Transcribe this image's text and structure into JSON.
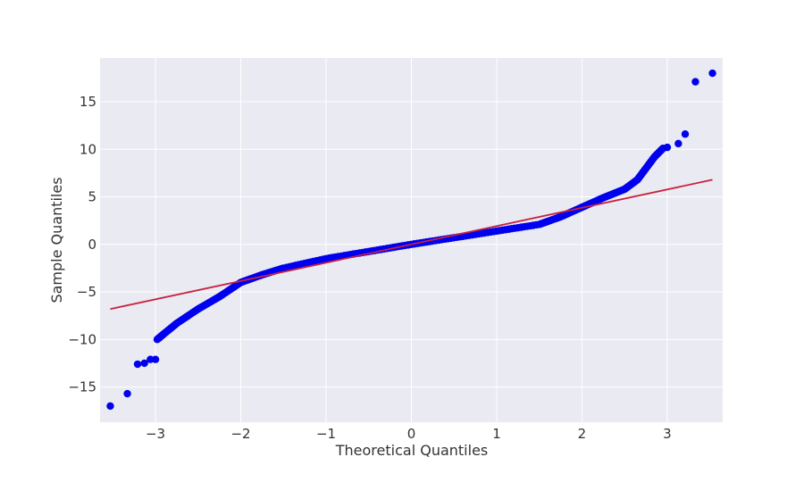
{
  "chart_data": {
    "type": "scatter",
    "title": "",
    "xlabel": "Theoretical Quantiles",
    "ylabel": "Sample Quantiles",
    "xlim": [
      -3.65,
      3.65
    ],
    "ylim": [
      -18.7,
      19.6
    ],
    "grid": true,
    "x_ticks": [
      -3,
      -2,
      -1,
      0,
      1,
      2,
      3
    ],
    "x_tick_labels": [
      "−3",
      "−2",
      "−1",
      "0",
      "1",
      "2",
      "3"
    ],
    "y_ticks": [
      -15,
      -10,
      -5,
      0,
      5,
      10,
      15
    ],
    "y_tick_labels": [
      "−15",
      "−10",
      "−5",
      "0",
      "5",
      "10",
      "15"
    ],
    "colors": {
      "background": "#eaeaf2",
      "grid": "#ffffff",
      "points": "#0000ee",
      "reference_line": "#c8213f"
    },
    "reference_line": {
      "x": [
        -3.53,
        3.53
      ],
      "y": [
        -6.8,
        6.8
      ]
    },
    "outlier_points": [
      {
        "x": -3.53,
        "y": -17.0
      },
      {
        "x": -3.33,
        "y": -15.7
      },
      {
        "x": -3.21,
        "y": -12.6
      },
      {
        "x": -3.13,
        "y": -12.5
      },
      {
        "x": -3.06,
        "y": -12.1
      },
      {
        "x": -3.0,
        "y": -12.1
      },
      {
        "x": 3.0,
        "y": 10.2
      },
      {
        "x": 3.13,
        "y": 10.6
      },
      {
        "x": 3.21,
        "y": 11.6
      },
      {
        "x": 3.33,
        "y": 17.1
      },
      {
        "x": 3.53,
        "y": 18.0
      }
    ],
    "sample_curve": {
      "description_points": [
        {
          "x": -2.98,
          "y": -10.0
        },
        {
          "x": -2.9,
          "y": -9.4
        },
        {
          "x": -2.75,
          "y": -8.3
        },
        {
          "x": -2.5,
          "y": -6.8
        },
        {
          "x": -2.25,
          "y": -5.5
        },
        {
          "x": -2.0,
          "y": -4.0
        },
        {
          "x": -1.75,
          "y": -3.2
        },
        {
          "x": -1.5,
          "y": -2.5
        },
        {
          "x": -1.0,
          "y": -1.5
        },
        {
          "x": -0.5,
          "y": -0.75
        },
        {
          "x": 0.0,
          "y": 0.0
        },
        {
          "x": 0.5,
          "y": 0.7
        },
        {
          "x": 1.0,
          "y": 1.4
        },
        {
          "x": 1.5,
          "y": 2.1
        },
        {
          "x": 1.75,
          "y": 2.9
        },
        {
          "x": 2.0,
          "y": 3.9
        },
        {
          "x": 2.25,
          "y": 4.9
        },
        {
          "x": 2.5,
          "y": 5.8
        },
        {
          "x": 2.65,
          "y": 6.8
        },
        {
          "x": 2.75,
          "y": 8.0
        },
        {
          "x": 2.85,
          "y": 9.2
        },
        {
          "x": 2.95,
          "y": 10.1
        }
      ]
    }
  }
}
